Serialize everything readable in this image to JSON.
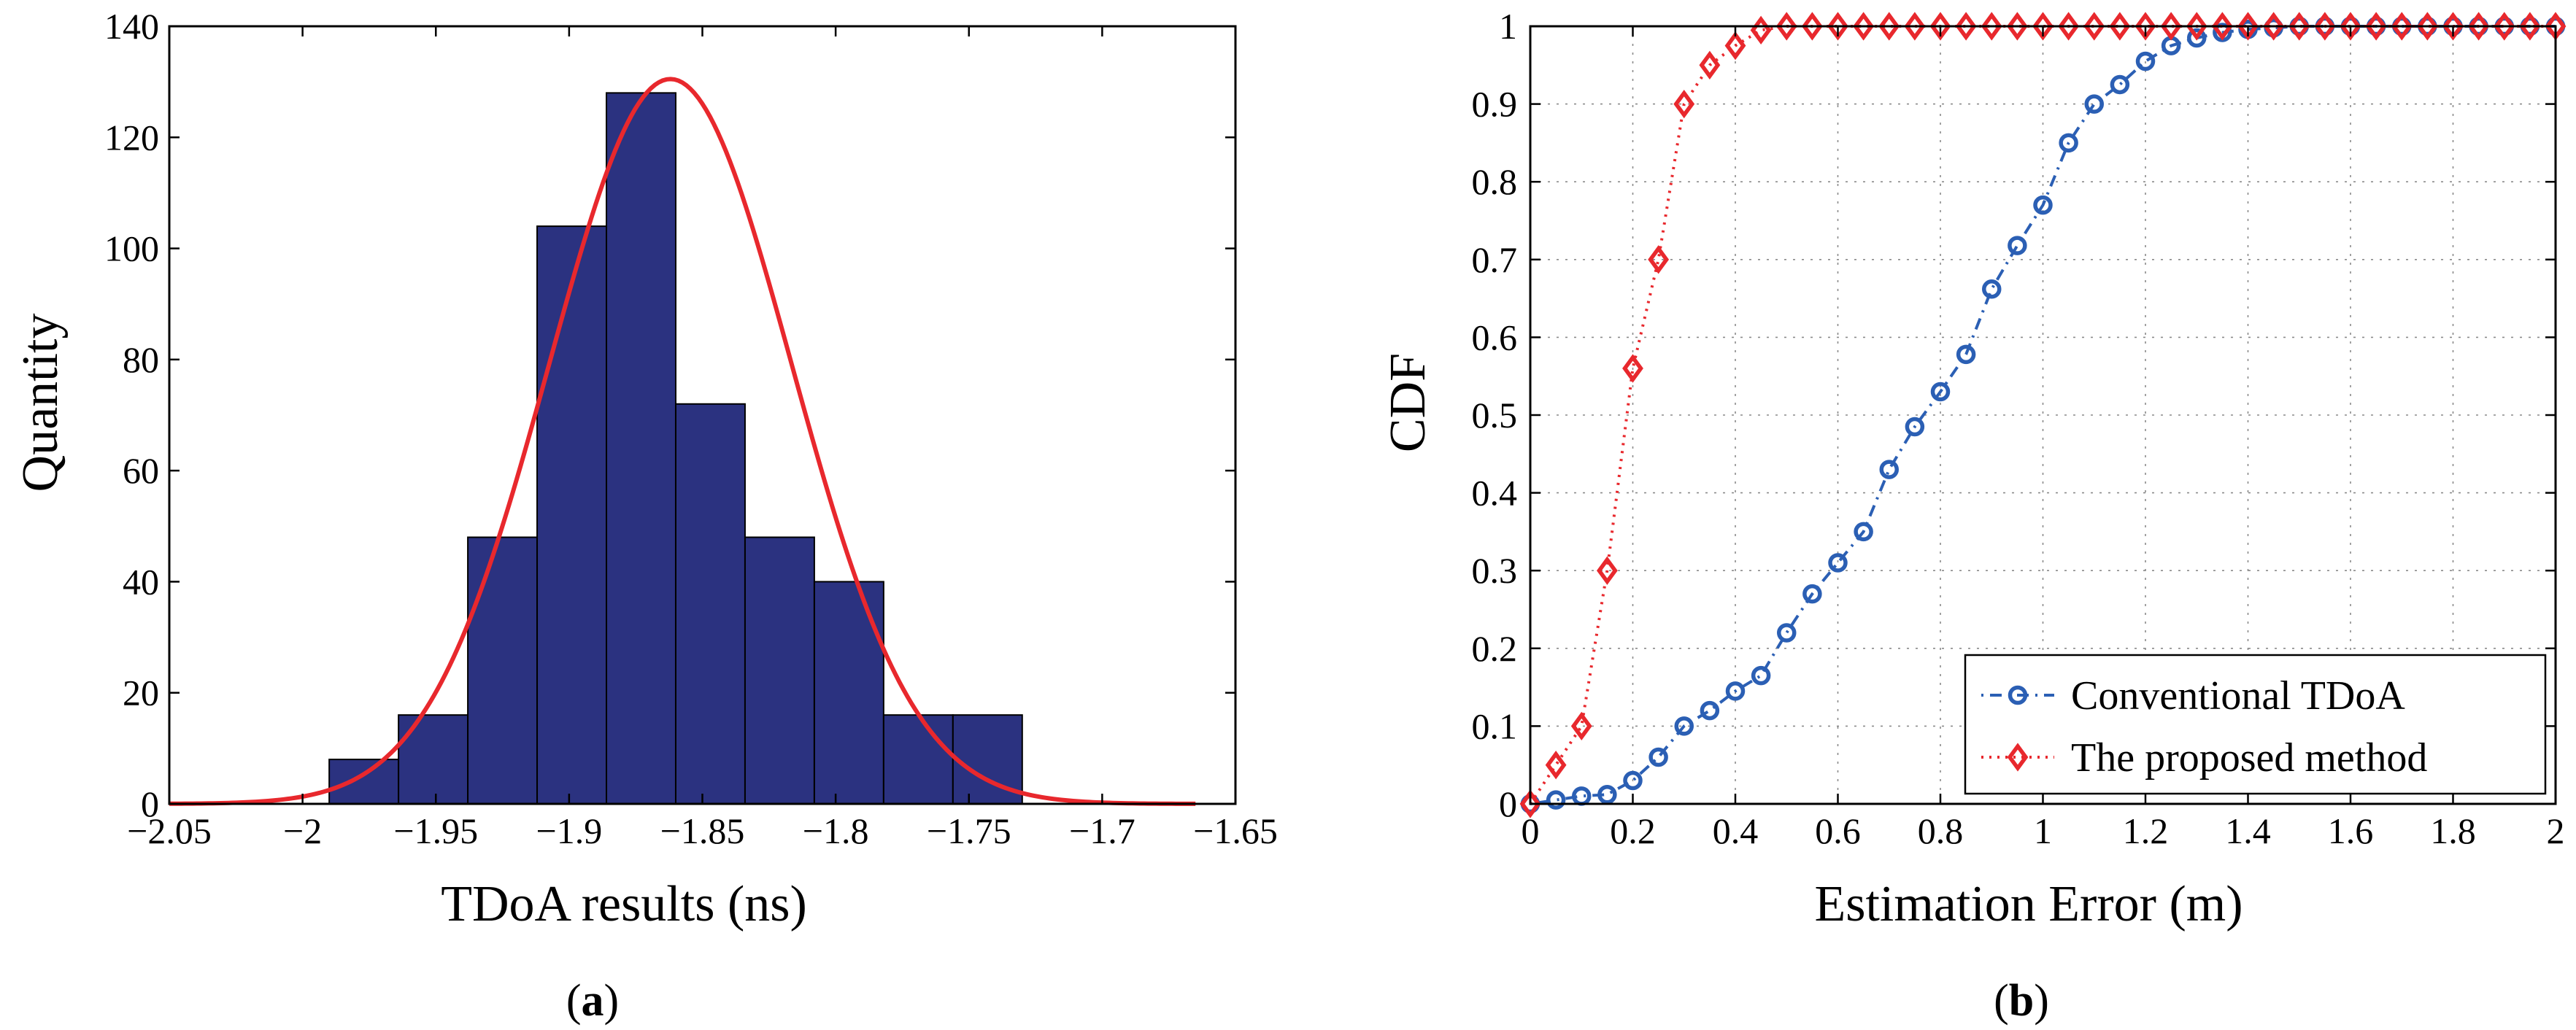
{
  "figure": {
    "panels": [
      {
        "label_open": "(",
        "label_letter": "a",
        "label_close": ")"
      },
      {
        "label_open": "(",
        "label_letter": "b",
        "label_close": ")"
      }
    ]
  },
  "colors": {
    "bar_fill": "#2b3280",
    "bar_edge": "#000000",
    "fit_curve": "#e8282d",
    "conventional": "#2b5fb4",
    "proposed": "#e8282d",
    "grid": "#8a8a8a"
  },
  "chart_data": [
    {
      "type": "bar",
      "subtype": "histogram-with-fit",
      "title": "",
      "xlabel": "TDoA results (ns)",
      "ylabel": "Quantity",
      "xlim": [
        -2.05,
        -1.65
      ],
      "ylim": [
        0,
        140
      ],
      "xticks": [
        -2.05,
        -2.0,
        -1.95,
        -1.9,
        -1.85,
        -1.8,
        -1.75,
        -1.7,
        -1.65
      ],
      "xtick_labels": [
        "−2.05",
        "−2",
        "−1.95",
        "−1.9",
        "−1.85",
        "−1.8",
        "−1.75",
        "−1.7",
        "−1.65"
      ],
      "yticks": [
        0,
        20,
        40,
        60,
        80,
        100,
        120,
        140
      ],
      "ytick_labels": [
        "0",
        "20",
        "40",
        "60",
        "80",
        "100",
        "120",
        "140"
      ],
      "grid": false,
      "bins": [
        {
          "x0": -1.99,
          "x1": -1.964,
          "count": 8
        },
        {
          "x0": -1.964,
          "x1": -1.938,
          "count": 16
        },
        {
          "x0": -1.938,
          "x1": -1.912,
          "count": 48
        },
        {
          "x0": -1.912,
          "x1": -1.886,
          "count": 104
        },
        {
          "x0": -1.886,
          "x1": -1.86,
          "count": 128
        },
        {
          "x0": -1.86,
          "x1": -1.834,
          "count": 72
        },
        {
          "x0": -1.834,
          "x1": -1.808,
          "count": 48
        },
        {
          "x0": -1.808,
          "x1": -1.782,
          "count": 40
        },
        {
          "x0": -1.782,
          "x1": -1.756,
          "count": 16
        },
        {
          "x0": -1.756,
          "x1": -1.73,
          "count": 16
        }
      ],
      "fit": {
        "kind": "normal",
        "mean": -1.862,
        "sigma": 0.0455,
        "peak": 130.5,
        "x_range": [
          -2.05,
          -1.665
        ]
      }
    },
    {
      "type": "line",
      "subtype": "cdf",
      "title": "",
      "xlabel": "Estimation Error (m)",
      "ylabel": "CDF",
      "xlim": [
        0,
        2
      ],
      "ylim": [
        0,
        1
      ],
      "xticks": [
        0,
        0.2,
        0.4,
        0.6,
        0.8,
        1.0,
        1.2,
        1.4,
        1.6,
        1.8,
        2.0
      ],
      "xtick_labels": [
        "0",
        "0.2",
        "0.4",
        "0.6",
        "0.8",
        "1",
        "1.2",
        "1.4",
        "1.6",
        "1.8",
        "2"
      ],
      "yticks": [
        0,
        0.1,
        0.2,
        0.3,
        0.4,
        0.5,
        0.6,
        0.7,
        0.8,
        0.9,
        1.0
      ],
      "ytick_labels": [
        "0",
        "0.1",
        "0.2",
        "0.3",
        "0.4",
        "0.5",
        "0.6",
        "0.7",
        "0.8",
        "0.9",
        "1"
      ],
      "grid": true,
      "legend": "bottom-right",
      "x": [
        0,
        0.05,
        0.1,
        0.15,
        0.2,
        0.25,
        0.3,
        0.35,
        0.4,
        0.45,
        0.5,
        0.55,
        0.6,
        0.65,
        0.7,
        0.75,
        0.8,
        0.85,
        0.9,
        0.95,
        1.0,
        1.05,
        1.1,
        1.15,
        1.2,
        1.25,
        1.3,
        1.35,
        1.4,
        1.45,
        1.5,
        1.55,
        1.6,
        1.65,
        1.7,
        1.75,
        1.8,
        1.85,
        1.9,
        1.95,
        2.0
      ],
      "series": [
        {
          "name": "Conventional TDoA",
          "marker": "circle",
          "line": "dash-dot",
          "values": [
            0,
            0.005,
            0.01,
            0.012,
            0.03,
            0.06,
            0.1,
            0.12,
            0.145,
            0.165,
            0.22,
            0.27,
            0.31,
            0.35,
            0.43,
            0.485,
            0.53,
            0.578,
            0.662,
            0.718,
            0.77,
            0.85,
            0.9,
            0.925,
            0.955,
            0.975,
            0.985,
            0.992,
            0.996,
            0.998,
            1,
            1,
            1,
            1,
            1,
            1,
            1,
            1,
            1,
            1,
            1
          ]
        },
        {
          "name": "The proposed method",
          "marker": "diamond",
          "line": "dotted",
          "values": [
            0,
            0.05,
            0.1,
            0.3,
            0.56,
            0.7,
            0.9,
            0.95,
            0.975,
            0.995,
            1,
            1,
            1,
            1,
            1,
            1,
            1,
            1,
            1,
            1,
            1,
            1,
            1,
            1,
            1,
            1,
            1,
            1,
            1,
            1,
            1,
            1,
            1,
            1,
            1,
            1,
            1,
            1,
            1,
            1,
            1
          ]
        }
      ]
    }
  ]
}
